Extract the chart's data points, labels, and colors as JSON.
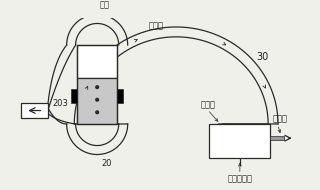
{
  "bg_color": "#f0f0eb",
  "line_color": "#2a2a2a",
  "labels": {
    "qi_guan": "气管",
    "zui_gao_dian": "最高点",
    "num_30": "30",
    "num_203": "203",
    "num_20": "20",
    "ce_shi_kou": "测试口",
    "lou_qi_kong": "漏气孔",
    "bei_ce_shi": "被测试产品"
  },
  "figsize": [
    3.2,
    1.9
  ],
  "dpi": 100
}
